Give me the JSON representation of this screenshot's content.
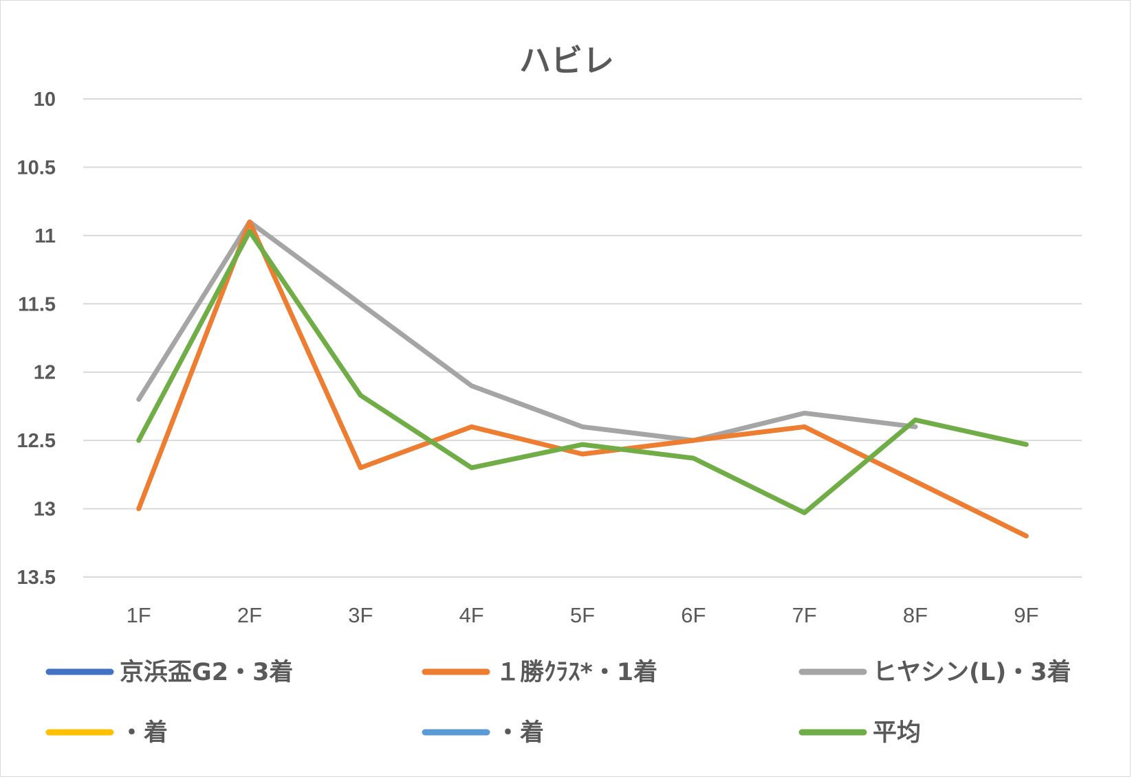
{
  "chart_data": {
    "type": "line",
    "title": "ハビレ",
    "categories": [
      "1F",
      "2F",
      "3F",
      "4F",
      "5F",
      "6F",
      "7F",
      "8F",
      "9F"
    ],
    "ylim": [
      10,
      13.5
    ],
    "y_reversed": true,
    "yticks": [
      "10",
      "10.5",
      "11",
      "11.5",
      "12",
      "12.5",
      "13",
      "13.5"
    ],
    "grid": true,
    "legend_position": "bottom",
    "series": [
      {
        "name": "京浜盃G2・3着",
        "color": "#4472C4",
        "values": [
          null,
          null,
          null,
          null,
          null,
          null,
          null,
          null,
          null
        ]
      },
      {
        "name": "１勝ｸﾗｽ*・1着",
        "color": "#ED7D31",
        "values": [
          13.0,
          10.9,
          12.7,
          12.4,
          12.6,
          12.5,
          12.4,
          12.8,
          13.2
        ]
      },
      {
        "name": "ヒヤシン(L)・3着",
        "color": "#A5A5A5",
        "values": [
          12.2,
          10.9,
          11.5,
          12.1,
          12.4,
          12.5,
          12.3,
          12.4,
          null
        ]
      },
      {
        "name": "・着",
        "color": "#FFC000",
        "values": [
          null,
          null,
          null,
          null,
          null,
          null,
          null,
          null,
          null
        ]
      },
      {
        "name": "・着",
        "color": "#5B9BD5",
        "values": [
          null,
          null,
          null,
          null,
          null,
          null,
          null,
          null,
          null
        ]
      },
      {
        "name": "平均",
        "color": "#70AD47",
        "values": [
          12.5,
          10.97,
          12.17,
          12.7,
          12.53,
          12.63,
          13.03,
          12.35,
          12.53
        ]
      }
    ]
  }
}
